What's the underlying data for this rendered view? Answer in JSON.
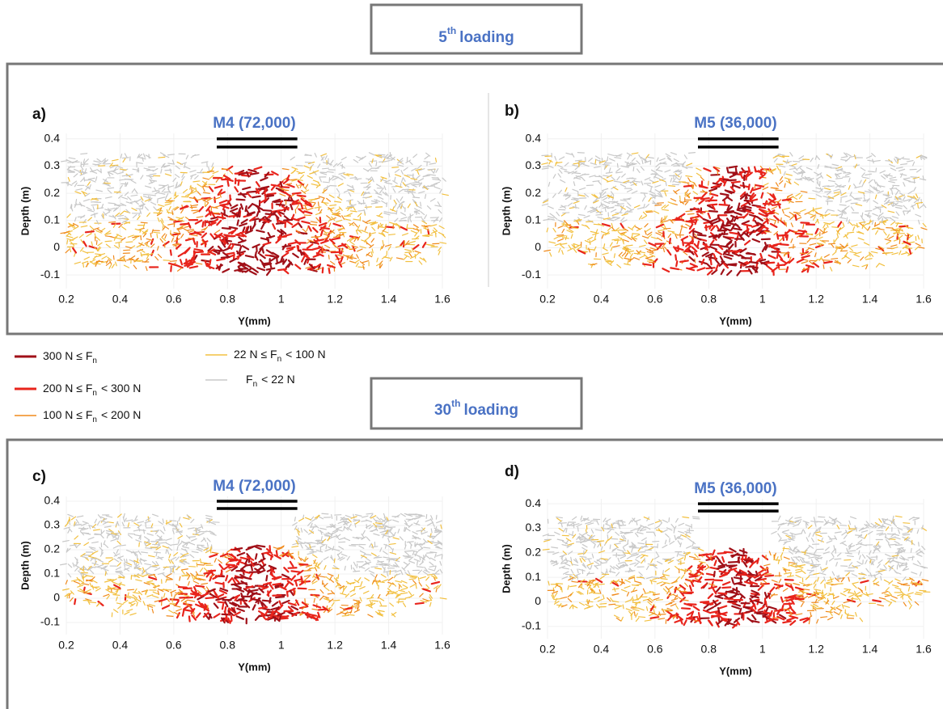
{
  "header_top": {
    "number": "5",
    "suffix": "th",
    "text": "loading"
  },
  "header_bottom": {
    "number": "30",
    "suffix": "th",
    "text": "loading"
  },
  "legend": [
    {
      "text": "300 N ≤ F",
      "sub": "n",
      "tail": "",
      "color": "#a01018"
    },
    {
      "text": "200 N ≤ F",
      "sub": "n",
      "tail": "< 300 N",
      "color": "#e8241c"
    },
    {
      "text": "100 N ≤ F",
      "sub": "n",
      "tail": "< 200 N",
      "color": "#f08a1c"
    },
    {
      "text": "22 N ≤ F",
      "sub": "n",
      "tail": "< 100 N",
      "color": "#f2c040"
    },
    {
      "text": "F",
      "sub": "n",
      "tail": "< 22 N",
      "color": "#c8c8c8"
    }
  ],
  "chart_data": [
    {
      "type": "force-chain",
      "panel": "a)",
      "title": "M4 (72,000)",
      "xlabel": "Y(mm)",
      "ylabel": "Depth (m)",
      "xlim": [
        0.2,
        1.6
      ],
      "ylim": [
        -0.15,
        0.42
      ],
      "xticks": [
        0.2,
        0.4,
        0.6,
        0.8,
        1,
        1.2,
        1.4,
        1.6
      ],
      "yticks": [
        -0.1,
        0,
        0.1,
        0.2,
        0.3,
        0.4
      ]
    },
    {
      "type": "force-chain",
      "panel": "b)",
      "title": "M5 (36,000)",
      "xlabel": "Y(mm)",
      "ylabel": "Depth (m)",
      "xlim": [
        0.2,
        1.6
      ],
      "ylim": [
        -0.15,
        0.42
      ],
      "xticks": [
        0.2,
        0.4,
        0.6,
        0.8,
        1,
        1.2,
        1.4,
        1.6
      ],
      "yticks": [
        -0.1,
        0,
        0.1,
        0.2,
        0.3,
        0.4
      ]
    },
    {
      "type": "force-chain",
      "panel": "c)",
      "title": "M4 (72,000)",
      "xlabel": "Y(mm)",
      "ylabel": "Depth (m)",
      "xlim": [
        0.2,
        1.6
      ],
      "ylim": [
        -0.15,
        0.42
      ],
      "xticks": [
        0.2,
        0.4,
        0.6,
        0.8,
        1,
        1.2,
        1.4,
        1.6
      ],
      "yticks": [
        -0.1,
        0,
        0.1,
        0.2,
        0.3,
        0.4
      ]
    },
    {
      "type": "force-chain",
      "panel": "d)",
      "title": "M5 (36,000)",
      "xlabel": "Y(mm)",
      "ylabel": "Depth (m)",
      "xlim": [
        0.2,
        1.6
      ],
      "ylim": [
        -0.15,
        0.42
      ],
      "xticks": [
        0.2,
        0.4,
        0.6,
        0.8,
        1,
        1.2,
        1.4,
        1.6
      ],
      "yticks": [
        -0.1,
        0,
        0.1,
        0.2,
        0.3,
        0.4
      ]
    }
  ]
}
